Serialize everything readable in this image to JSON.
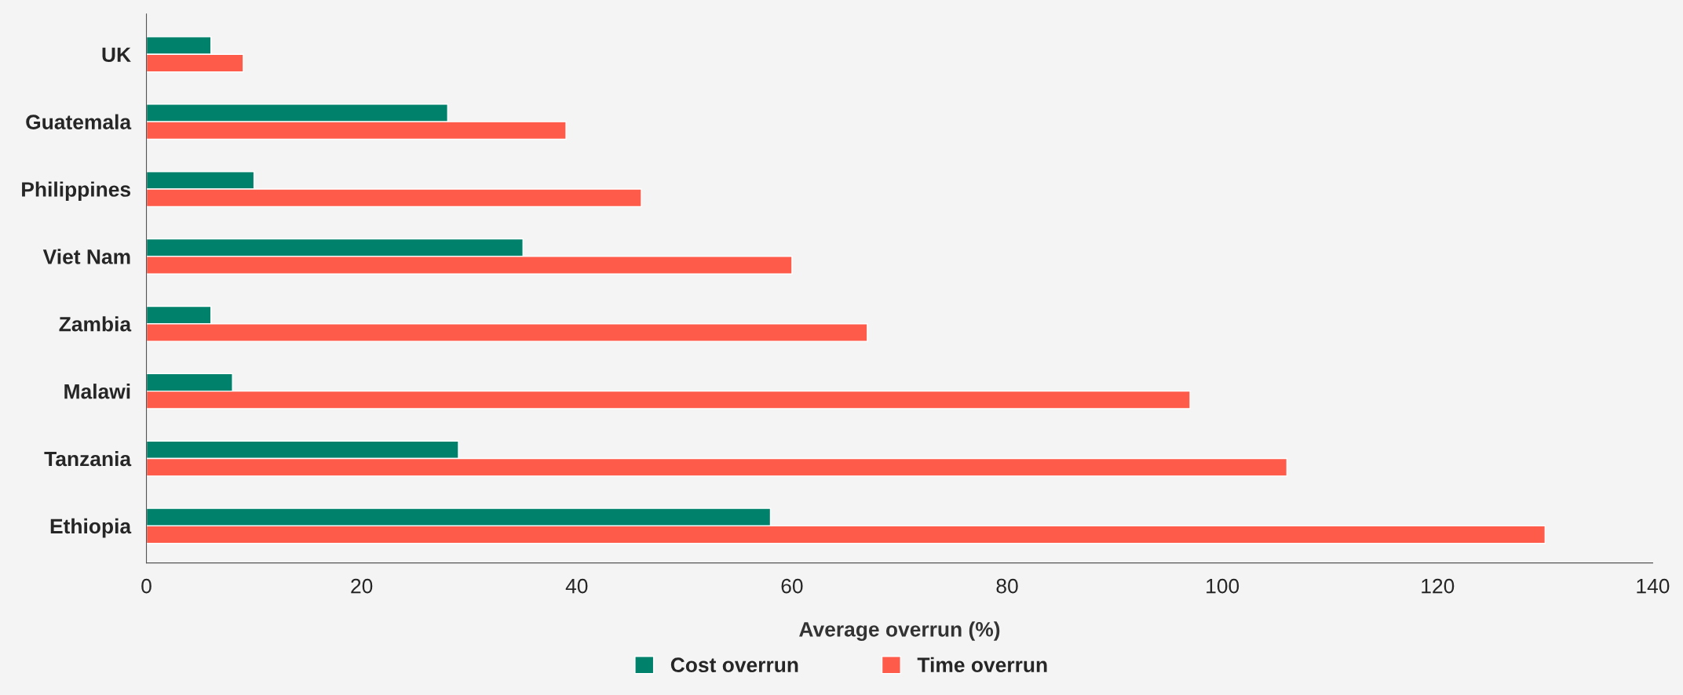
{
  "chart_data": {
    "type": "bar",
    "orientation": "horizontal",
    "xlabel": "Average overrun (%)",
    "categories": [
      "UK",
      "Guatemala",
      "Philippines",
      "Viet Nam",
      "Zambia",
      "Malawi",
      "Tanzania",
      "Ethiopia"
    ],
    "series": [
      {
        "name": "Cost overrun",
        "color": "#00816b",
        "values": [
          6,
          28,
          10,
          35,
          6,
          8,
          29,
          58
        ]
      },
      {
        "name": "Time overrun",
        "color": "#ff5b4b",
        "values": [
          9,
          39,
          46,
          60,
          67,
          97,
          106,
          130
        ]
      }
    ],
    "xlim": [
      0,
      140
    ],
    "xticks": [
      0,
      20,
      40,
      60,
      80,
      100,
      120,
      140
    ],
    "grid": false,
    "legend": "bottom"
  }
}
